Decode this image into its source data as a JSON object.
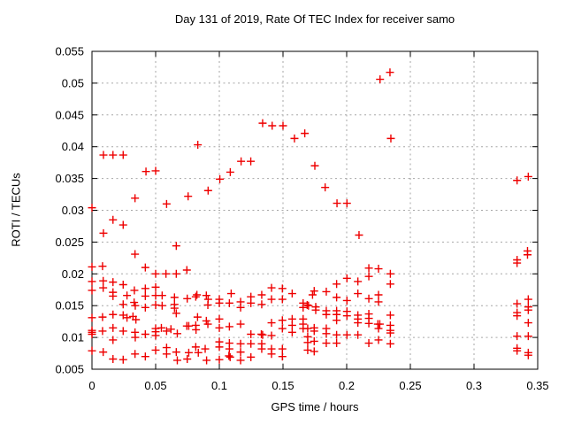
{
  "title": "Day 131 of 2019, Rate Of TEC Index for receiver samo",
  "colors": {
    "marker": "#ee0000",
    "grid": "#a6a6a6",
    "axis": "#000000",
    "background": "#ffffff"
  },
  "chart_data": {
    "type": "scatter",
    "title": "Day 131 of 2019, Rate Of TEC Index for receiver samo",
    "xlabel": "GPS time / hours",
    "ylabel": "ROTI / TECUs",
    "xlim": [
      0,
      0.35
    ],
    "ylim": [
      0.005,
      0.055
    ],
    "xticks": [
      0,
      0.05,
      0.1,
      0.15,
      0.2,
      0.25,
      0.3,
      0.35
    ],
    "xtick_labels": [
      "0",
      "0.05",
      "0.1",
      "0.15",
      "0.2",
      "0.25",
      "0.3",
      "0.35"
    ],
    "yticks": [
      0.005,
      0.01,
      0.015,
      0.02,
      0.025,
      0.03,
      0.035,
      0.04,
      0.045,
      0.05,
      0.055
    ],
    "ytick_labels": [
      "0.005",
      "0.01",
      "0.015",
      "0.02",
      "0.025",
      "0.03",
      "0.035",
      "0.04",
      "0.045",
      "0.05",
      "0.055"
    ],
    "grid": true,
    "legend": "none",
    "marker": {
      "shape": "plus",
      "color": "#ee0000",
      "size": 9
    },
    "points": [
      [
        0.234,
        0.0517
      ],
      [
        0.2262,
        0.0506
      ],
      [
        0.134,
        0.0437
      ],
      [
        0.1415,
        0.0433
      ],
      [
        0.15,
        0.0433
      ],
      [
        0.1671,
        0.0421
      ],
      [
        0.159,
        0.0413
      ],
      [
        0.2347,
        0.0413
      ],
      [
        0.0831,
        0.0403
      ],
      [
        0.009,
        0.0387
      ],
      [
        0.0165,
        0.0387
      ],
      [
        0.0245,
        0.0387
      ],
      [
        0.1171,
        0.0377
      ],
      [
        0.1247,
        0.0377
      ],
      [
        0.175,
        0.037
      ],
      [
        0.0424,
        0.0361
      ],
      [
        0.05,
        0.0362
      ],
      [
        0.1086,
        0.036
      ],
      [
        0.3338,
        0.0347
      ],
      [
        0.3426,
        0.0353
      ],
      [
        0.1004,
        0.0349
      ],
      [
        0.1831,
        0.0336
      ],
      [
        0.0912,
        0.0331
      ],
      [
        0.0755,
        0.0322
      ],
      [
        0.0338,
        0.0319
      ],
      [
        0.0586,
        0.031
      ],
      [
        0.1924,
        0.0311
      ],
      [
        0.2002,
        0.0311
      ],
      [
        0.0,
        0.0304
      ],
      [
        0.0165,
        0.0285
      ],
      [
        0.0245,
        0.0277
      ],
      [
        0.009,
        0.0264
      ],
      [
        0.2097,
        0.0261
      ],
      [
        0.0662,
        0.0244
      ],
      [
        0.0338,
        0.0231
      ],
      [
        0.342,
        0.0236
      ],
      [
        0.342,
        0.023
      ],
      [
        0.3338,
        0.0222
      ],
      [
        0.3338,
        0.0217
      ],
      [
        0.0,
        0.0211
      ],
      [
        0.0083,
        0.0212
      ],
      [
        0.0419,
        0.021
      ],
      [
        0.2174,
        0.0209
      ],
      [
        0.225,
        0.0208
      ],
      [
        0.2174,
        0.0196
      ],
      [
        0.2002,
        0.0193
      ],
      [
        0.2088,
        0.0188
      ],
      [
        0.2343,
        0.02
      ],
      [
        0.2343,
        0.0184
      ],
      [
        0.05,
        0.02
      ],
      [
        0.0581,
        0.02
      ],
      [
        0.0662,
        0.02
      ],
      [
        0.0745,
        0.0206
      ],
      [
        0.0,
        0.0188
      ],
      [
        0.0088,
        0.0189
      ],
      [
        0.0165,
        0.0187
      ],
      [
        0.0245,
        0.0183
      ],
      [
        0.0419,
        0.0177
      ],
      [
        0.05,
        0.0179
      ],
      [
        0.0088,
        0.0178
      ],
      [
        0.0,
        0.0174
      ],
      [
        0.0333,
        0.0174
      ],
      [
        0.0165,
        0.0171
      ],
      [
        0.0165,
        0.0165
      ],
      [
        0.1921,
        0.0184
      ],
      [
        0.1745,
        0.0173
      ],
      [
        0.184,
        0.0172
      ],
      [
        0.1732,
        0.0167
      ],
      [
        0.0419,
        0.0165
      ],
      [
        0.05,
        0.0166
      ],
      [
        0.0275,
        0.0166
      ],
      [
        0.0551,
        0.0166
      ],
      [
        0.0648,
        0.0163
      ],
      [
        0.0748,
        0.0161
      ],
      [
        0.0824,
        0.0167
      ],
      [
        0.0898,
        0.0166
      ],
      [
        0.0815,
        0.0164
      ],
      [
        0.1093,
        0.0169
      ],
      [
        0.1248,
        0.0164
      ],
      [
        0.1333,
        0.0167
      ],
      [
        0.141,
        0.0178
      ],
      [
        0.1495,
        0.0177
      ],
      [
        0.1572,
        0.0169
      ],
      [
        0.1921,
        0.0163
      ],
      [
        0.2002,
        0.0158
      ],
      [
        0.2088,
        0.0169
      ],
      [
        0.2174,
        0.0161
      ],
      [
        0.225,
        0.0167
      ],
      [
        0.225,
        0.0156
      ],
      [
        0.0912,
        0.016
      ],
      [
        0.1,
        0.016
      ],
      [
        0.141,
        0.016
      ],
      [
        0.1495,
        0.016
      ],
      [
        0.0245,
        0.0152
      ],
      [
        0.0331,
        0.0155
      ],
      [
        0.034,
        0.015
      ],
      [
        0.0551,
        0.015
      ],
      [
        0.0648,
        0.0152
      ],
      [
        0.0648,
        0.0146
      ],
      [
        0.0419,
        0.0147
      ],
      [
        0.05,
        0.0151
      ],
      [
        0.091,
        0.0151
      ],
      [
        0.1,
        0.0154
      ],
      [
        0.1079,
        0.0154
      ],
      [
        0.1167,
        0.0156
      ],
      [
        0.1248,
        0.0154
      ],
      [
        0.1333,
        0.0152
      ],
      [
        0.1167,
        0.0147
      ],
      [
        0.1658,
        0.0154
      ],
      [
        0.1658,
        0.0147
      ],
      [
        0.169,
        0.0151
      ],
      [
        0.17,
        0.015
      ],
      [
        0.1757,
        0.0148
      ],
      [
        0.1757,
        0.0143
      ],
      [
        0.3338,
        0.0153
      ],
      [
        0.3426,
        0.016
      ],
      [
        0.3426,
        0.0148
      ],
      [
        0.3426,
        0.0143
      ],
      [
        0.3338,
        0.0139
      ],
      [
        0.3338,
        0.0134
      ],
      [
        0.0,
        0.0131
      ],
      [
        0.0083,
        0.0132
      ],
      [
        0.0165,
        0.0136
      ],
      [
        0.0245,
        0.0135
      ],
      [
        0.0275,
        0.0131
      ],
      [
        0.0322,
        0.0133
      ],
      [
        0.0345,
        0.0128
      ],
      [
        0.0545,
        0.0115
      ],
      [
        0.062,
        0.0113
      ],
      [
        0.0662,
        0.0138
      ],
      [
        0.0829,
        0.0132
      ],
      [
        0.0898,
        0.0126
      ],
      [
        0.091,
        0.0121
      ],
      [
        0.0815,
        0.0119
      ],
      [
        0.0817,
        0.0112
      ],
      [
        0.0745,
        0.0118
      ],
      [
        0.076,
        0.0118
      ],
      [
        0.1,
        0.0129
      ],
      [
        0.1,
        0.0115
      ],
      [
        0.1079,
        0.0117
      ],
      [
        0.1167,
        0.0121
      ],
      [
        0.141,
        0.0123
      ],
      [
        0.1495,
        0.0127
      ],
      [
        0.1495,
        0.0114
      ],
      [
        0.1572,
        0.0129
      ],
      [
        0.1572,
        0.0119
      ],
      [
        0.1572,
        0.0108
      ],
      [
        0.1658,
        0.0129
      ],
      [
        0.1658,
        0.0121
      ],
      [
        0.1658,
        0.0114
      ],
      [
        0.1745,
        0.0115
      ],
      [
        0.1745,
        0.011
      ],
      [
        0.1694,
        0.0114
      ],
      [
        0.184,
        0.0142
      ],
      [
        0.184,
        0.0136
      ],
      [
        0.184,
        0.0114
      ],
      [
        0.184,
        0.0106
      ],
      [
        0.1921,
        0.0142
      ],
      [
        0.1921,
        0.0136
      ],
      [
        0.1921,
        0.0127
      ],
      [
        0.2002,
        0.0141
      ],
      [
        0.2002,
        0.0134
      ],
      [
        0.2088,
        0.0135
      ],
      [
        0.2088,
        0.0129
      ],
      [
        0.2088,
        0.0123
      ],
      [
        0.2174,
        0.0137
      ],
      [
        0.2174,
        0.013
      ],
      [
        0.2174,
        0.0122
      ],
      [
        0.2245,
        0.0121
      ],
      [
        0.226,
        0.0121
      ],
      [
        0.225,
        0.0114
      ],
      [
        0.2343,
        0.0135
      ],
      [
        0.2343,
        0.0119
      ],
      [
        0.2343,
        0.0111
      ],
      [
        0.2343,
        0.0107
      ],
      [
        0.3426,
        0.0123
      ],
      [
        0.0,
        0.0111
      ],
      [
        0.0,
        0.0108
      ],
      [
        0.0,
        0.0105
      ],
      [
        0.0083,
        0.011
      ],
      [
        0.0165,
        0.0115
      ],
      [
        0.0245,
        0.011
      ],
      [
        0.0338,
        0.0108
      ],
      [
        0.034,
        0.01
      ],
      [
        0.0419,
        0.0105
      ],
      [
        0.05,
        0.0114
      ],
      [
        0.05,
        0.0109
      ],
      [
        0.0586,
        0.011
      ],
      [
        0.067,
        0.0106
      ],
      [
        0.0165,
        0.0096
      ],
      [
        0.05,
        0.0103
      ],
      [
        0.1694,
        0.0101
      ],
      [
        0.1745,
        0.0094
      ],
      [
        0.1694,
        0.0092
      ],
      [
        0.184,
        0.0091
      ],
      [
        0.1921,
        0.0104
      ],
      [
        0.1921,
        0.0091
      ],
      [
        0.2002,
        0.0104
      ],
      [
        0.2088,
        0.0104
      ],
      [
        0.2174,
        0.0091
      ],
      [
        0.225,
        0.0096
      ],
      [
        0.2343,
        0.009
      ],
      [
        0.1248,
        0.0105
      ],
      [
        0.133,
        0.0105
      ],
      [
        0.134,
        0.0104
      ],
      [
        0.141,
        0.0103
      ],
      [
        0.3338,
        0.0102
      ],
      [
        0.3426,
        0.0102
      ],
      [
        0.0,
        0.0079
      ],
      [
        0.0088,
        0.0077
      ],
      [
        0.0165,
        0.0066
      ],
      [
        0.0245,
        0.0065
      ],
      [
        0.0338,
        0.0074
      ],
      [
        0.0419,
        0.007
      ],
      [
        0.05,
        0.008
      ],
      [
        0.0586,
        0.0084
      ],
      [
        0.0586,
        0.0074
      ],
      [
        0.0662,
        0.0077
      ],
      [
        0.067,
        0.0064
      ],
      [
        0.0748,
        0.0066
      ],
      [
        0.076,
        0.0076
      ],
      [
        0.0815,
        0.0085
      ],
      [
        0.0835,
        0.0076
      ],
      [
        0.0889,
        0.0082
      ],
      [
        0.09,
        0.0064
      ],
      [
        0.1,
        0.0093
      ],
      [
        0.1,
        0.0085
      ],
      [
        0.1,
        0.0065
      ],
      [
        0.1079,
        0.0091
      ],
      [
        0.1079,
        0.0082
      ],
      [
        0.1075,
        0.0071
      ],
      [
        0.1085,
        0.0069
      ],
      [
        0.1167,
        0.009
      ],
      [
        0.1167,
        0.0077
      ],
      [
        0.1167,
        0.0064
      ],
      [
        0.1248,
        0.009
      ],
      [
        0.1248,
        0.0069
      ],
      [
        0.1333,
        0.009
      ],
      [
        0.1333,
        0.0082
      ],
      [
        0.141,
        0.0082
      ],
      [
        0.141,
        0.0074
      ],
      [
        0.1495,
        0.0082
      ],
      [
        0.1495,
        0.007
      ],
      [
        0.1694,
        0.008
      ],
      [
        0.1745,
        0.0078
      ],
      [
        0.3338,
        0.0083
      ],
      [
        0.3338,
        0.0079
      ],
      [
        0.3426,
        0.0076
      ],
      [
        0.3426,
        0.0072
      ]
    ]
  }
}
